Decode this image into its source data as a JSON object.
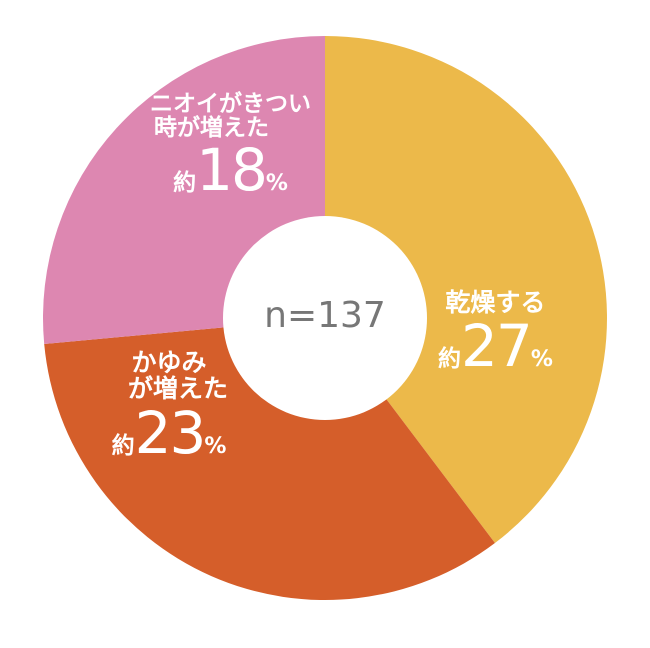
{
  "chart_data": {
    "type": "pie",
    "categories": [
      "乾燥する",
      "かゆみが増えた",
      "ニオイがきつい時が増えた"
    ],
    "values": [
      27,
      23,
      18
    ],
    "colors": [
      "#ECB94A",
      "#D55E2A",
      "#DD87B1"
    ],
    "center_text": "n=137",
    "donut": true
  },
  "labels": {
    "dry": {
      "line1": "乾燥する",
      "approx": "約",
      "value": "27",
      "unit": "%"
    },
    "itch": {
      "line1": "かゆみ",
      "line2": "が増えた",
      "approx": "約",
      "value": "23",
      "unit": "%"
    },
    "odor": {
      "line1": "ニオイがきつい",
      "line2": "時が増えた",
      "approx": "約",
      "value": "18",
      "unit": "%"
    }
  }
}
